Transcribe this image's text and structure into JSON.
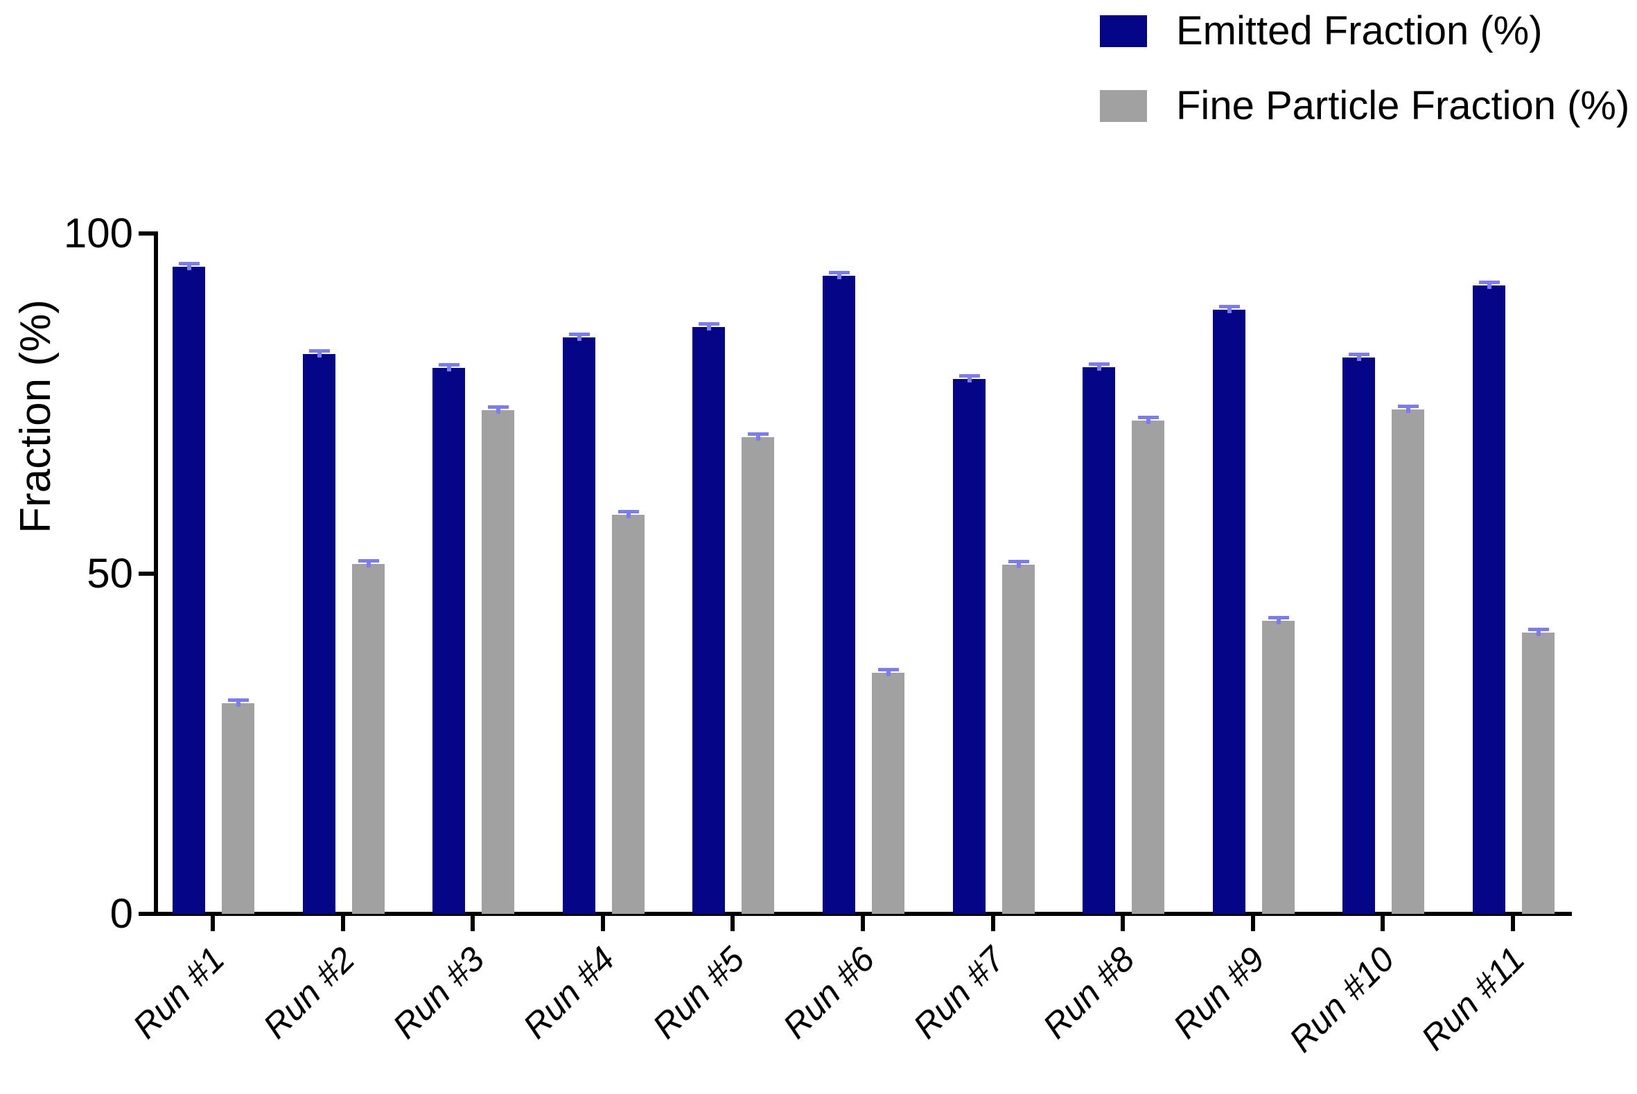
{
  "chart_data": {
    "type": "bar",
    "title": "",
    "categories": [
      "Run #1",
      "Run #2",
      "Run #3",
      "Run #4",
      "Run #5",
      "Run #6",
      "Run #7",
      "Run #8",
      "Run #9",
      "Run #10",
      "Run #11"
    ],
    "series": [
      {
        "name": "Emitted Fraction (%)",
        "color": "#050588",
        "values": [
          95.1,
          82.3,
          80.2,
          84.7,
          86.3,
          93.8,
          78.6,
          80.3,
          88.8,
          81.8,
          92.4
        ],
        "errors": [
          0.5,
          0.5,
          0.5,
          0.5,
          0.5,
          0.5,
          0.5,
          0.5,
          0.5,
          0.5,
          0.5
        ]
      },
      {
        "name": "Fine Particle Fraction (%)",
        "color": "#a1a1a1",
        "values": [
          31.0,
          51.4,
          74.0,
          58.7,
          70.1,
          35.4,
          51.3,
          72.5,
          43.1,
          74.1,
          41.3
        ],
        "errors": [
          0.5,
          0.5,
          0.5,
          0.5,
          0.5,
          0.5,
          0.5,
          0.5,
          0.5,
          0.5,
          0.5
        ]
      }
    ],
    "error_bar_color": "#7c7cea",
    "axis_color": "#000000",
    "xlabel": "",
    "ylabel": "Fraction (%)",
    "yticks": [
      100,
      50,
      0
    ],
    "ylim": [
      0,
      100
    ],
    "grid": false,
    "legend_position": "top-right"
  }
}
